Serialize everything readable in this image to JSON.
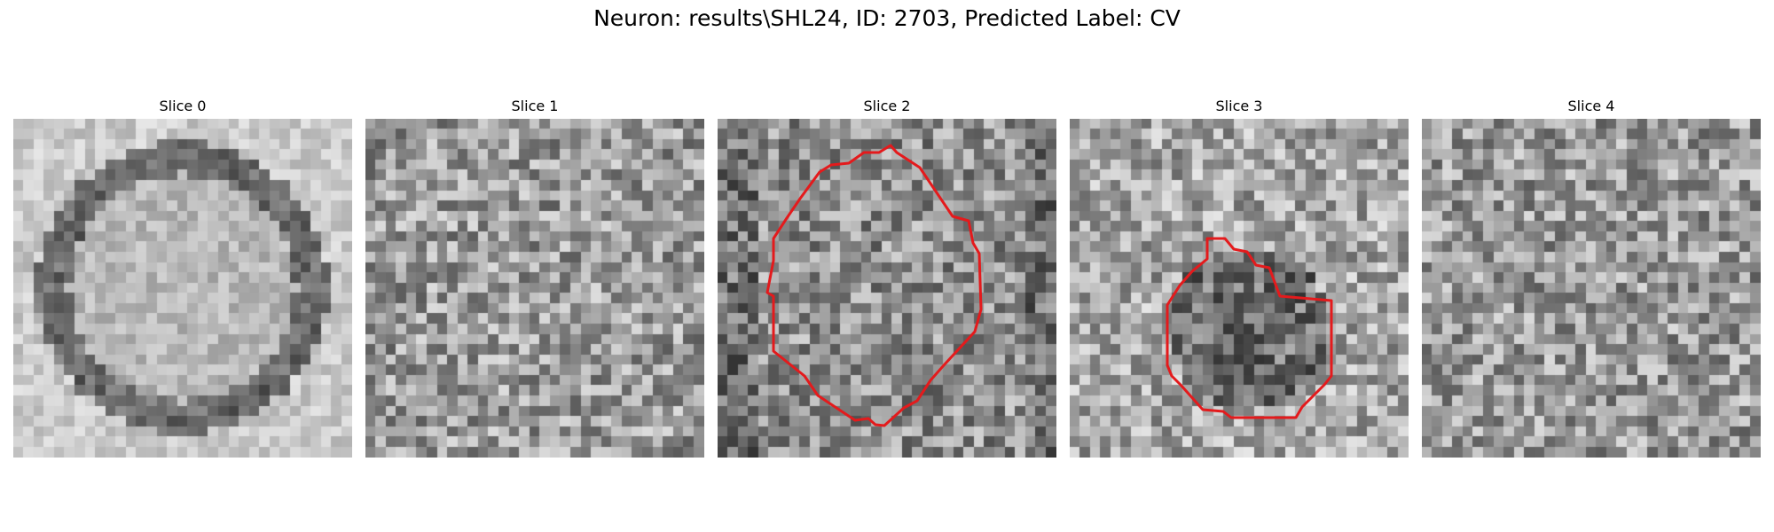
{
  "figure": {
    "title": "Neuron: results\\SHL24, ID: 2703, Predicted Label: CV",
    "contour_color": "#e41a1c"
  },
  "panels": [
    {
      "title": "Slice 0",
      "pattern": "ring",
      "has_contour": false
    },
    {
      "title": "Slice 1",
      "pattern": "noise",
      "has_contour": false
    },
    {
      "title": "Slice 2",
      "pattern": "dark-noise",
      "has_contour": true
    },
    {
      "title": "Slice 3",
      "pattern": "noise-dark-center",
      "has_contour": true
    },
    {
      "title": "Slice 4",
      "pattern": "noise",
      "has_contour": false
    }
  ]
}
